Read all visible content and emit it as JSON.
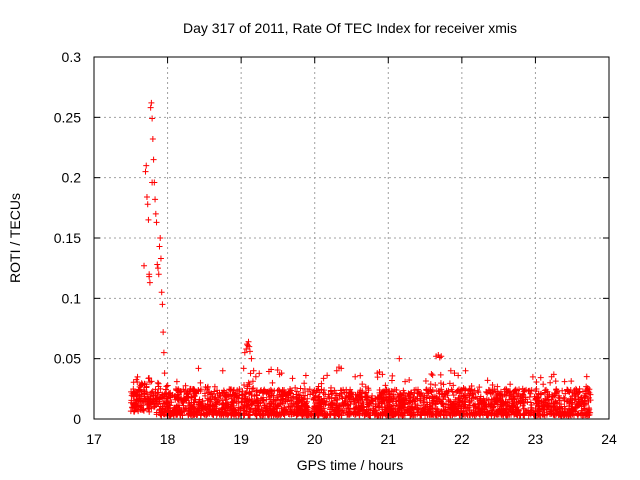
{
  "chart_data": {
    "type": "scatter",
    "title": "Day 317 of 2011, Rate Of TEC Index for receiver xmis",
    "xlabel": "GPS time / hours",
    "ylabel": "ROTI / TECUs",
    "xlim": [
      17,
      24
    ],
    "ylim": [
      0,
      0.3
    ],
    "grid": true,
    "marker": "+",
    "colors": {
      "points": "#ff0000",
      "axes": "#000000",
      "grid": "#a0a0a0"
    },
    "x_ticks": [
      "17",
      "18",
      "19",
      "20",
      "21",
      "22",
      "23",
      "24"
    ],
    "y_ticks": [
      "0",
      "0.05",
      "0.1",
      "0.15",
      "0.2",
      "0.25",
      "0.3"
    ],
    "series": [
      {
        "name": "ROTI",
        "points": [
          [
            17.68,
            0.127
          ],
          [
            17.7,
            0.205
          ],
          [
            17.71,
            0.21
          ],
          [
            17.72,
            0.184
          ],
          [
            17.73,
            0.178
          ],
          [
            17.74,
            0.165
          ],
          [
            17.75,
            0.12
          ],
          [
            17.76,
            0.113
          ],
          [
            17.77,
            0.258
          ],
          [
            17.78,
            0.262
          ],
          [
            17.79,
            0.249
          ],
          [
            17.8,
            0.232
          ],
          [
            17.81,
            0.215
          ],
          [
            17.82,
            0.196
          ],
          [
            17.83,
            0.182
          ],
          [
            17.84,
            0.17
          ],
          [
            17.85,
            0.163
          ],
          [
            17.86,
            0.128
          ],
          [
            17.87,
            0.125
          ],
          [
            17.88,
            0.12
          ],
          [
            17.89,
            0.143
          ],
          [
            17.9,
            0.15
          ],
          [
            17.91,
            0.133
          ],
          [
            17.92,
            0.105
          ],
          [
            17.93,
            0.095
          ],
          [
            17.94,
            0.072
          ],
          [
            17.95,
            0.055
          ],
          [
            17.96,
            0.038
          ],
          [
            17.79,
            0.196
          ],
          [
            17.75,
            0.118
          ],
          [
            19.05,
            0.055
          ],
          [
            19.07,
            0.058
          ],
          [
            19.08,
            0.062
          ],
          [
            19.09,
            0.061
          ],
          [
            19.1,
            0.064
          ],
          [
            19.11,
            0.06
          ],
          [
            19.12,
            0.056
          ],
          [
            19.14,
            0.05
          ],
          [
            19.17,
            0.04
          ],
          [
            19.2,
            0.035
          ],
          [
            20.3,
            0.04
          ],
          [
            20.33,
            0.043
          ],
          [
            20.36,
            0.042
          ],
          [
            20.85,
            0.038
          ],
          [
            20.88,
            0.039
          ],
          [
            20.92,
            0.037
          ],
          [
            21.15,
            0.05
          ],
          [
            21.65,
            0.052
          ],
          [
            21.68,
            0.053
          ],
          [
            21.7,
            0.051
          ],
          [
            21.72,
            0.052
          ],
          [
            21.85,
            0.04
          ],
          [
            21.9,
            0.038
          ],
          [
            21.95,
            0.036
          ],
          [
            22.05,
            0.04
          ],
          [
            23.2,
            0.03
          ],
          [
            23.22,
            0.035
          ],
          [
            23.25,
            0.037
          ],
          [
            18.42,
            0.042
          ],
          [
            18.75,
            0.04
          ],
          [
            19.55,
            0.038
          ],
          [
            19.88,
            0.036
          ],
          [
            20.55,
            0.035
          ],
          [
            22.35,
            0.032
          ],
          [
            22.6,
            0.025
          ],
          [
            23.55,
            0.025
          ],
          [
            23.7,
            0.024
          ]
        ],
        "background_band": {
          "x_range": [
            17.5,
            23.75
          ],
          "typical_max": 0.025,
          "typical_min": 0.003,
          "count": 2600
        }
      }
    ]
  }
}
